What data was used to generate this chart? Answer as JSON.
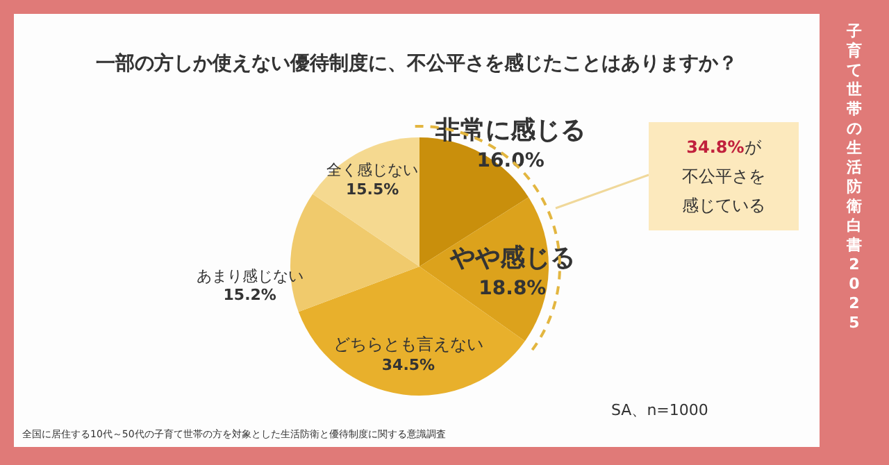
{
  "chart_data": {
    "type": "pie",
    "title": "一部の方しか使えない優待制度に、不公平さを感じたことはありますか？",
    "categories": [
      "非常に感じる",
      "やや感じる",
      "どちらとも言えない",
      "あまり感じない",
      "全く感じない"
    ],
    "values": [
      16.0,
      18.8,
      34.5,
      15.2,
      15.5
    ],
    "value_labels": [
      "16.0%",
      "18.8%",
      "34.5%",
      "15.2%",
      "15.5%"
    ],
    "colors": [
      "#c98f0c",
      "#dca21c",
      "#e8b02c",
      "#f0ca6c",
      "#f5d990"
    ],
    "annotations": [
      "34.8%が不公平さを感じている",
      "SA、n=1000",
      "全国に居住する10代～50代の子育て世帯の方を対象とした生活防衛と優待制度に関する意識調査",
      "子育て世帯の生活防衛白書2025"
    ],
    "grid": false
  }
}
